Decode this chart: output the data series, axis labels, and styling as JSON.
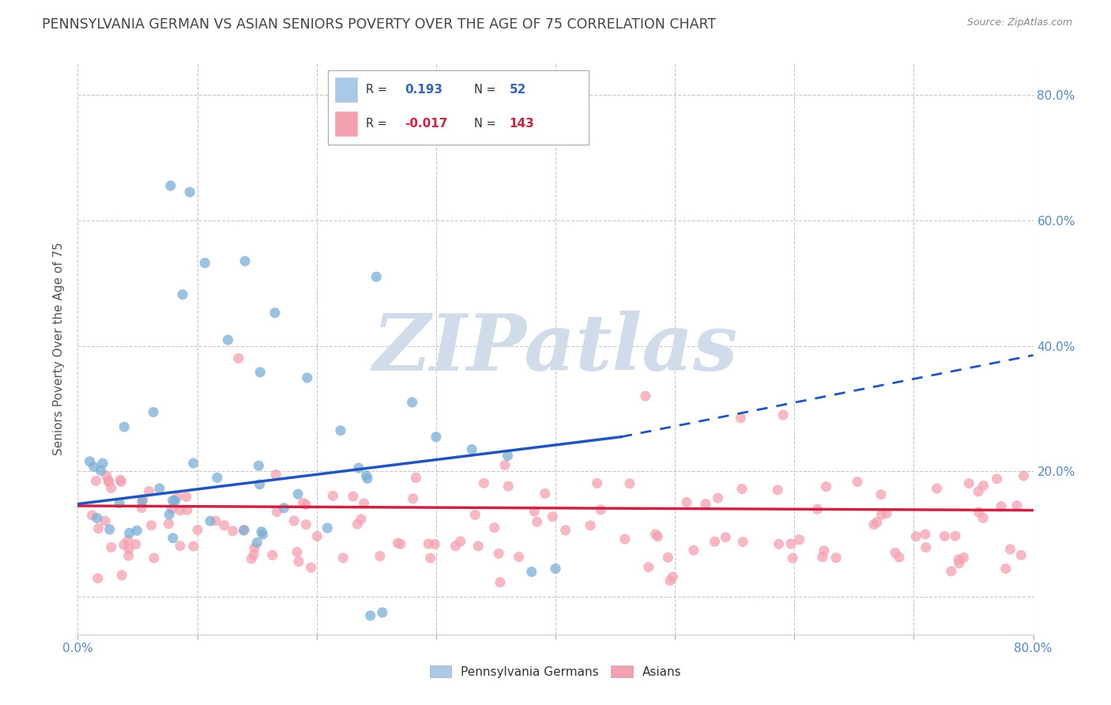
{
  "title": "PENNSYLVANIA GERMAN VS ASIAN SENIORS POVERTY OVER THE AGE OF 75 CORRELATION CHART",
  "source": "Source: ZipAtlas.com",
  "ylabel": "Seniors Poverty Over the Age of 75",
  "xlim": [
    0.0,
    0.8
  ],
  "ylim": [
    -0.06,
    0.85
  ],
  "grid_color": "#c8c8c8",
  "background_color": "#ffffff",
  "watermark_text": "ZIPatlas",
  "watermark_color": "#d0dcea",
  "legend_r_blue": "0.193",
  "legend_n_blue": "52",
  "legend_r_pink": "-0.017",
  "legend_n_pink": "143",
  "blue_scatter_color": "#7aaed6",
  "pink_scatter_color": "#f5a0b0",
  "blue_line_color": "#2255bb",
  "pink_line_color": "#cc2244",
  "title_color": "#444444",
  "axis_tick_color": "#5588cc",
  "ylabel_color": "#555555",
  "blue_line_x0": 0.0,
  "blue_line_y0": 0.148,
  "blue_line_x_solid_end": 0.455,
  "blue_line_y_solid_end": 0.255,
  "blue_line_x1": 0.8,
  "blue_line_y1": 0.385,
  "pink_line_x0": 0.0,
  "pink_line_y0": 0.145,
  "pink_line_x1": 0.8,
  "pink_line_y1": 0.138,
  "scatter_seed": 42
}
